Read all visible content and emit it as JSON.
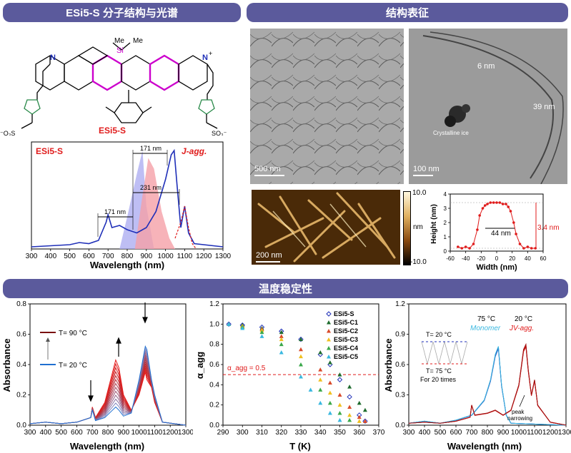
{
  "banners": {
    "structure": "ESi5-S 分子结构与光谱",
    "characterization": "结构表征",
    "stability": "温度稳定性"
  },
  "molecule": {
    "name": "ESi5-S",
    "atoms": {
      "si": "Si",
      "me1": "Me",
      "me2": "Me",
      "n_left": "N",
      "n_right": "N",
      "plus": "+",
      "so3_left": "⁻O₃S",
      "so3_right": "SO₃⁻"
    }
  },
  "tem": {
    "left_scale": "500 nm",
    "right_scale": "100 nm",
    "label_6nm": "6 nm",
    "label_39nm": "39 nm",
    "crystalline": "Crystalline ice"
  },
  "afm": {
    "scale": "200 nm",
    "colorbar_max": "10.0",
    "colorbar_min": "-10.0",
    "colorbar_unit": "nm"
  },
  "colors": {
    "banner": "#5b5a9c",
    "blue": "#1f2fb8",
    "red": "#e01b1b",
    "pink": "#f5a0a8",
    "lavender": "#a8a8f0"
  },
  "chart_data": [
    {
      "type": "line",
      "id": "spectrum",
      "legend_left": "ESi5-S",
      "legend_right": "J-agg.",
      "xlabel": "Wavelength (nm)",
      "ylabel": "",
      "xlim": [
        300,
        1300
      ],
      "xticks": [
        300,
        400,
        500,
        600,
        700,
        800,
        900,
        1000,
        1100,
        1200,
        1300
      ],
      "annotations": [
        "171 nm",
        "231 nm",
        "171 nm"
      ],
      "series": [
        {
          "x": [
            300,
            400,
            500,
            550,
            600,
            650,
            690,
            700,
            720,
            760,
            800,
            850,
            900,
            950,
            1000,
            1030,
            1045,
            1060,
            1080,
            1100,
            1120,
            1150,
            1300
          ],
          "values": [
            0.02,
            0.03,
            0.04,
            0.06,
            0.05,
            0.08,
            0.25,
            0.32,
            0.2,
            0.22,
            0.18,
            0.15,
            0.2,
            0.35,
            0.65,
            0.88,
            0.92,
            0.6,
            0.2,
            0.4,
            0.15,
            0.05,
            0.02
          ]
        },
        {
          "x": [
            1050,
            1080,
            1100,
            1110,
            1120,
            1140,
            1160
          ],
          "values": [
            0.1,
            0.25,
            0.4,
            0.3,
            0.2,
            0.05,
            0.0
          ]
        }
      ]
    },
    {
      "type": "scatter",
      "id": "height",
      "xlabel": "Width (nm)",
      "ylabel": "Height (nm)",
      "xlim": [
        -60,
        60
      ],
      "ylim": [
        0,
        4
      ],
      "xticks": [
        -60,
        -40,
        -20,
        0,
        20,
        40,
        60
      ],
      "yticks": [
        0,
        1,
        2,
        3,
        4
      ],
      "annotations": [
        "44 nm",
        "3.4 nm"
      ],
      "series": [
        {
          "x": [
            -50,
            -45,
            -40,
            -35,
            -30,
            -25,
            -22,
            -18,
            -15,
            -12,
            -8,
            -4,
            0,
            4,
            8,
            12,
            15,
            18,
            22,
            25,
            30,
            35,
            40,
            45,
            50
          ],
          "values": [
            0.3,
            0.2,
            0.3,
            0.2,
            0.5,
            1.5,
            2.5,
            3.0,
            3.2,
            3.3,
            3.4,
            3.4,
            3.4,
            3.4,
            3.3,
            3.3,
            3.1,
            2.8,
            2.0,
            1.2,
            0.5,
            0.2,
            0.3,
            0.2,
            0.2
          ]
        }
      ]
    },
    {
      "type": "line",
      "id": "absorbance_T",
      "xlabel": "Wavelength (nm)",
      "ylabel": "Absorbance",
      "xlim": [
        300,
        1300
      ],
      "ylim": [
        0,
        0.8
      ],
      "xticks": [
        300,
        400,
        500,
        600,
        700,
        800,
        900,
        1000,
        1100,
        1200,
        1300
      ],
      "yticks": [
        0.0,
        0.2,
        0.4,
        0.6,
        0.8
      ],
      "legend": [
        "T= 90 °C",
        "T= 20 °C"
      ],
      "series": [
        {
          "name": "T= 90 °C",
          "x": [
            300,
            400,
            500,
            600,
            690,
            700,
            720,
            780,
            830,
            850,
            870,
            900,
            950,
            1000,
            1040,
            1050,
            1080,
            1100,
            1150,
            1300
          ],
          "values": [
            0.01,
            0.02,
            0.01,
            0.02,
            0.05,
            0.12,
            0.05,
            0.15,
            0.35,
            0.43,
            0.38,
            0.2,
            0.1,
            0.2,
            0.35,
            0.3,
            0.25,
            0.15,
            0.02,
            0.0
          ]
        },
        {
          "name": "T= 20 °C",
          "x": [
            300,
            400,
            500,
            600,
            690,
            700,
            720,
            780,
            830,
            850,
            870,
            900,
            950,
            1000,
            1040,
            1050,
            1080,
            1100,
            1150,
            1300
          ],
          "values": [
            0.01,
            0.02,
            0.01,
            0.02,
            0.05,
            0.1,
            0.03,
            0.05,
            0.1,
            0.12,
            0.1,
            0.06,
            0.08,
            0.3,
            0.52,
            0.5,
            0.3,
            0.2,
            0.02,
            0.0
          ]
        }
      ]
    },
    {
      "type": "scatter",
      "id": "alpha_agg",
      "xlabel": "T (K)",
      "ylabel": "α_agg",
      "xlim": [
        290,
        370
      ],
      "ylim": [
        0,
        1.2
      ],
      "xticks": [
        290,
        300,
        310,
        320,
        330,
        340,
        350,
        360,
        370
      ],
      "yticks": [
        0.0,
        0.2,
        0.4,
        0.6,
        0.8,
        1.0,
        1.2
      ],
      "threshold": 0.5,
      "threshold_label": "α_agg = 0.5",
      "series": [
        {
          "name": "ESi5-S",
          "color": "#1f2fb8",
          "marker": "diamond",
          "x": [
            293,
            300,
            310,
            320,
            330,
            340,
            345,
            350,
            355,
            360,
            363
          ],
          "values": [
            1.0,
            0.99,
            0.97,
            0.93,
            0.85,
            0.7,
            0.6,
            0.45,
            0.28,
            0.1,
            0.04
          ]
        },
        {
          "name": "ESi5-C1",
          "color": "#1e6b2e",
          "marker": "triangle",
          "x": [
            293,
            300,
            310,
            320,
            330,
            340,
            345,
            350,
            355,
            360,
            363
          ],
          "values": [
            1.0,
            0.99,
            0.96,
            0.92,
            0.85,
            0.72,
            0.62,
            0.5,
            0.38,
            0.22,
            0.15
          ]
        },
        {
          "name": "ESi5-C2",
          "color": "#d94a2a",
          "marker": "triangle",
          "x": [
            293,
            300,
            310,
            320,
            330,
            340,
            345,
            350,
            355,
            360,
            363
          ],
          "values": [
            1.0,
            0.98,
            0.95,
            0.88,
            0.75,
            0.55,
            0.42,
            0.3,
            0.18,
            0.08,
            0.04
          ]
        },
        {
          "name": "ESi5-C3",
          "color": "#f0c020",
          "marker": "triangle",
          "x": [
            293,
            300,
            310,
            320,
            330,
            340,
            345,
            350,
            355,
            360
          ],
          "values": [
            1.0,
            0.98,
            0.94,
            0.85,
            0.68,
            0.45,
            0.32,
            0.2,
            0.1,
            0.04
          ]
        },
        {
          "name": "ESi5-C4",
          "color": "#3aa84a",
          "marker": "triangle",
          "x": [
            293,
            300,
            310,
            320,
            330,
            340,
            345,
            350,
            355
          ],
          "values": [
            1.0,
            0.97,
            0.92,
            0.8,
            0.6,
            0.35,
            0.22,
            0.12,
            0.05
          ]
        },
        {
          "name": "ESi5-C5",
          "color": "#3ab8e0",
          "marker": "triangle",
          "x": [
            293,
            300,
            310,
            320,
            330,
            335,
            340,
            345,
            350
          ],
          "values": [
            1.0,
            0.96,
            0.88,
            0.72,
            0.48,
            0.35,
            0.22,
            0.12,
            0.05
          ]
        }
      ]
    },
    {
      "type": "line",
      "id": "cycling",
      "xlabel": "Wavelength (nm)",
      "ylabel": "Absorbance",
      "xlim": [
        300,
        1300
      ],
      "ylim": [
        0,
        1.2
      ],
      "xticks": [
        300,
        400,
        500,
        600,
        700,
        800,
        900,
        1000,
        1100,
        1200,
        1300
      ],
      "yticks": [
        0.0,
        0.3,
        0.6,
        0.9,
        1.2
      ],
      "labels": {
        "t75": "75 °C",
        "t20": "20 °C",
        "monomer": "Monomer",
        "jvagg": "JV-agg.",
        "inset_top": "T= 20 °C",
        "inset_bottom": "T= 75 °C",
        "inset_note": "For 20 times",
        "peak": "peak",
        "narrowing": "narrowing"
      },
      "series": [
        {
          "name": "Monomer",
          "x": [
            300,
            400,
            500,
            600,
            700,
            780,
            820,
            850,
            870,
            890,
            920,
            950,
            1300
          ],
          "values": [
            0.02,
            0.04,
            0.02,
            0.05,
            0.1,
            0.25,
            0.45,
            0.7,
            0.78,
            0.4,
            0.1,
            0.02,
            0.0
          ]
        },
        {
          "name": "JV-agg.",
          "x": [
            300,
            400,
            500,
            600,
            690,
            700,
            720,
            800,
            850,
            900,
            950,
            1000,
            1030,
            1045,
            1060,
            1080,
            1100,
            1120,
            1200,
            1300
          ],
          "values": [
            0.02,
            0.03,
            0.02,
            0.04,
            0.08,
            0.2,
            0.1,
            0.12,
            0.15,
            0.1,
            0.15,
            0.4,
            0.75,
            0.8,
            0.55,
            0.3,
            0.45,
            0.2,
            0.03,
            0.0
          ]
        }
      ]
    }
  ]
}
